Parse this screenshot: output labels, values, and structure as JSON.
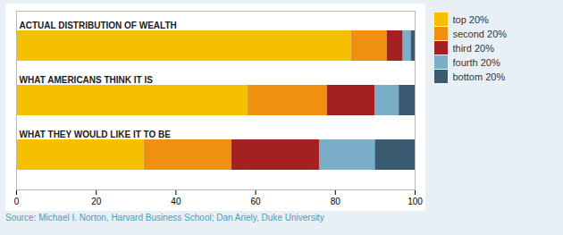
{
  "chart_data": {
    "type": "bar",
    "orientation": "horizontal",
    "stacked": true,
    "categories": [
      "ACTUAL DISTRIBUTION OF WEALTH",
      "WHAT AMERICANS THINK IT IS",
      "WHAT THEY WOULD LIKE IT TO BE"
    ],
    "series": [
      {
        "name": "top 20%",
        "color": "#F5C000",
        "values": [
          84,
          58,
          32
        ]
      },
      {
        "name": "second 20%",
        "color": "#F09010",
        "values": [
          9,
          20,
          22
        ]
      },
      {
        "name": "third 20%",
        "color": "#A52020",
        "values": [
          4,
          12,
          22
        ]
      },
      {
        "name": "fourth 20%",
        "color": "#7BAEC8",
        "values": [
          2,
          6,
          14
        ]
      },
      {
        "name": "bottom 20%",
        "color": "#3A5A70",
        "values": [
          1,
          4,
          10
        ]
      }
    ],
    "xlim": [
      0,
      100
    ],
    "xticks": [
      0,
      20,
      40,
      60,
      80,
      100
    ],
    "grid": false,
    "legend": "right",
    "caption": "Source: Michael I. Norton, Harvard Business School; Dan Ariely, Duke University"
  }
}
